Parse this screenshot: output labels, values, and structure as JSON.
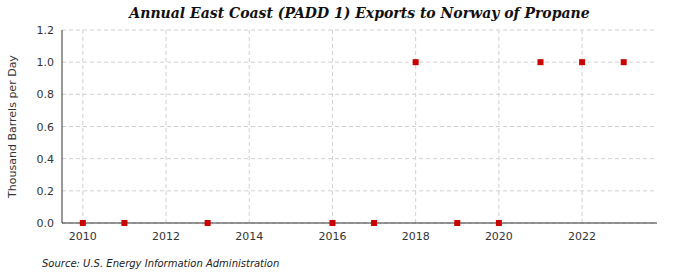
{
  "chart_data": {
    "type": "scatter",
    "title": "Annual East Coast (PADD 1) Exports to Norway of Propane",
    "y_label": "Thousand Barrels per Day",
    "annotations": [
      "Source: U.S. Energy Information Administration"
    ],
    "x": [
      2010,
      2011,
      2013,
      2016,
      2017,
      2018,
      2019,
      2020,
      2021,
      2022,
      2023
    ],
    "values": [
      0.0,
      0.0,
      0.0,
      0.0,
      0.0,
      1.0,
      0.0,
      0.0,
      1.0,
      1.0,
      1.0
    ],
    "color": "#cc0000",
    "marker": "square",
    "xlim": [
      2009.5,
      2023.8
    ],
    "ylim": [
      0.0,
      1.2
    ],
    "xticks": [
      2010,
      2012,
      2014,
      2016,
      2018,
      2020,
      2022
    ],
    "yticks": [
      {
        "value": 0.0,
        "label": "0.0"
      },
      0.2,
      0.4,
      0.6,
      0.8,
      {
        "value": 1.0,
        "label": "1.0"
      },
      1.2
    ],
    "grid": true
  }
}
